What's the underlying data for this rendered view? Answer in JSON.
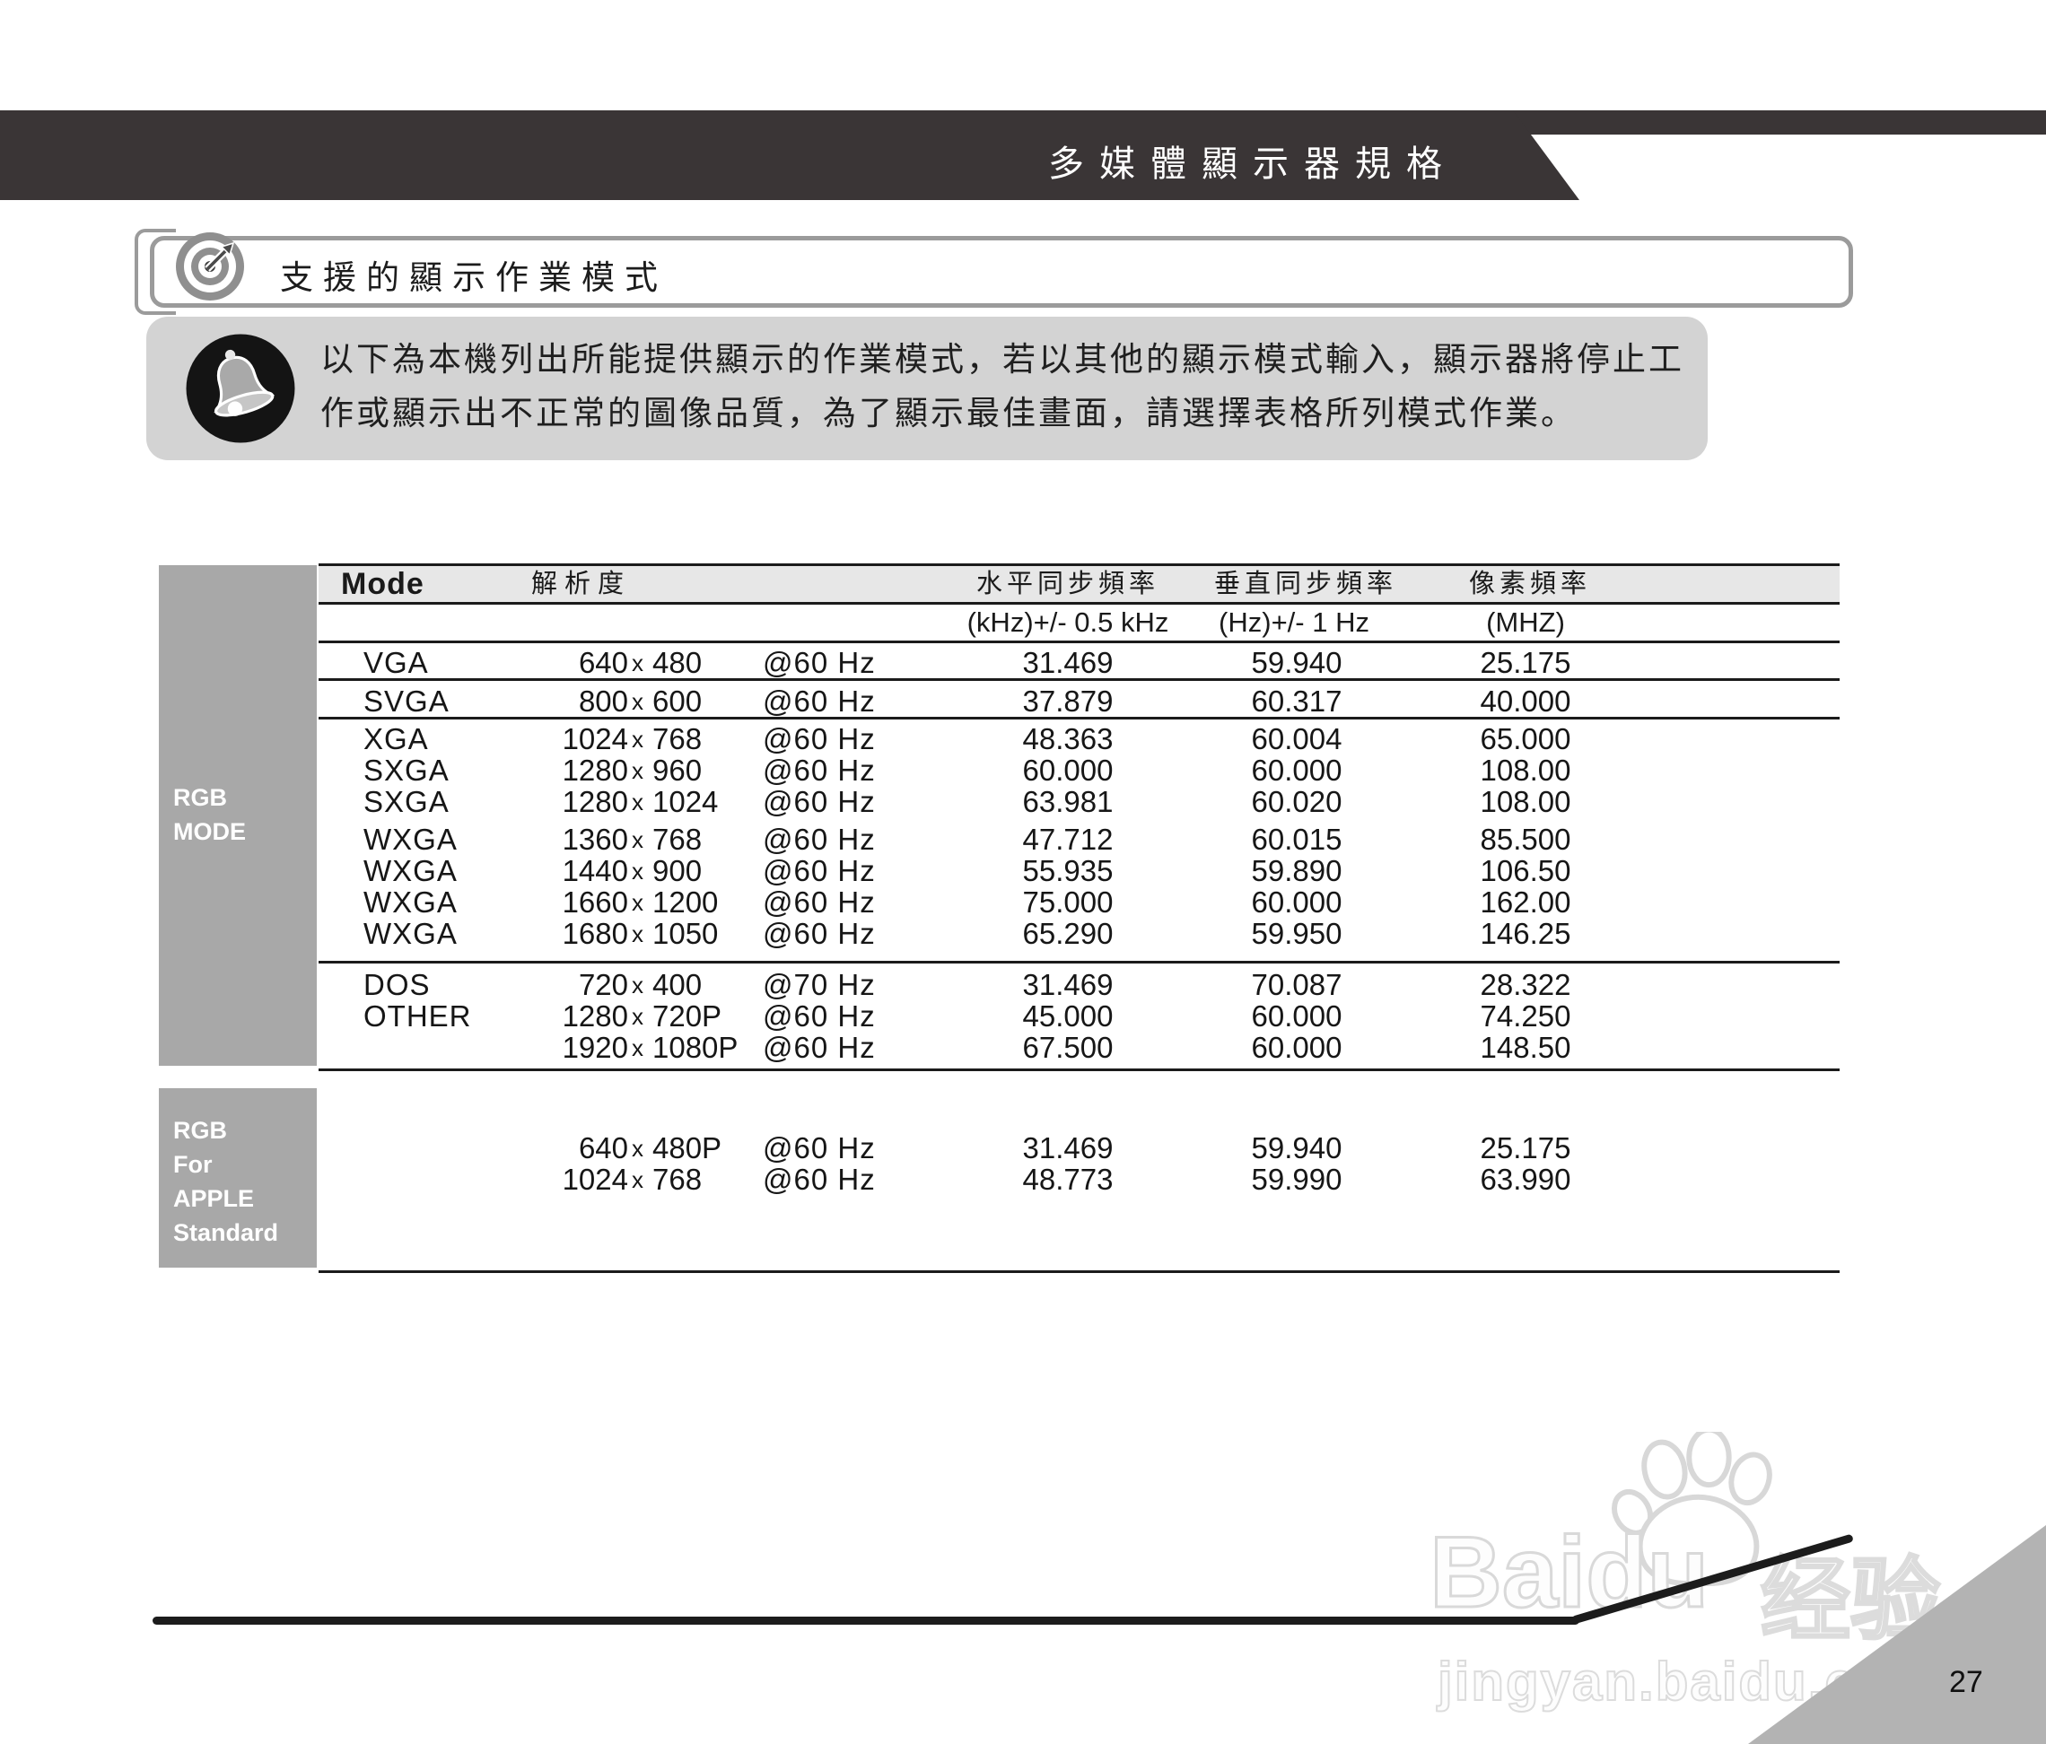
{
  "header": {
    "title": "多媒體顯示器規格"
  },
  "section": {
    "title": "支援的顯示作業模式"
  },
  "note": {
    "lines": [
      "以下為本機列出所能提供顯示的作業模式，若以其他的顯示模式輸入，顯示器將停止工",
      "作或顯示出不正常的圖像品質，為了顯示最佳畫面，請選擇表格所列模式作業。"
    ]
  },
  "table": {
    "col_headers": {
      "mode": "Mode",
      "resolution": "解析度",
      "h_sync": "水平同步頻率",
      "v_sync": "垂直同步頻率",
      "pixel": "像素頻率"
    },
    "unit_headers": {
      "h_sync": "(kHz)+/- 0.5 kHz",
      "v_sync": "(Hz)+/- 1 Hz",
      "pixel": "(MHZ)"
    },
    "res_sep": "x",
    "side_labels": {
      "rgb": "RGB\nMODE",
      "apple": "RGB\nFor\nAPPLE\nStandard"
    },
    "rows": [
      {
        "mode": "VGA",
        "res_w": "640",
        "res_h": "480",
        "rate": "@60 Hz",
        "h_sync": "31.469",
        "v_sync": "59.940",
        "pixel": "25.175"
      },
      {
        "mode": "SVGA",
        "res_w": "800",
        "res_h": "600",
        "rate": "@60 Hz",
        "h_sync": "37.879",
        "v_sync": "60.317",
        "pixel": "40.000"
      },
      {
        "mode": "XGA",
        "res_w": "1024",
        "res_h": "768",
        "rate": "@60 Hz",
        "h_sync": "48.363",
        "v_sync": "60.004",
        "pixel": "65.000"
      },
      {
        "mode": "SXGA",
        "res_w": "1280",
        "res_h": "960",
        "rate": "@60 Hz",
        "h_sync": "60.000",
        "v_sync": "60.000",
        "pixel": "108.00"
      },
      {
        "mode": "SXGA",
        "res_w": "1280",
        "res_h": "1024",
        "rate": "@60 Hz",
        "h_sync": "63.981",
        "v_sync": "60.020",
        "pixel": "108.00"
      },
      {
        "mode": "WXGA",
        "res_w": "1360",
        "res_h": "768",
        "rate": "@60 Hz",
        "h_sync": "47.712",
        "v_sync": "60.015",
        "pixel": "85.500"
      },
      {
        "mode": "WXGA",
        "res_w": "1440",
        "res_h": "900",
        "rate": "@60 Hz",
        "h_sync": "55.935",
        "v_sync": "59.890",
        "pixel": "106.50"
      },
      {
        "mode": "WXGA",
        "res_w": "1660",
        "res_h": "1200",
        "rate": "@60 Hz",
        "h_sync": "75.000",
        "v_sync": "60.000",
        "pixel": "162.00"
      },
      {
        "mode": "WXGA",
        "res_w": "1680",
        "res_h": "1050",
        "rate": "@60 Hz",
        "h_sync": "65.290",
        "v_sync": "59.950",
        "pixel": "146.25"
      },
      {
        "mode": "DOS",
        "res_w": "720",
        "res_h": "400",
        "rate": "@70 Hz",
        "h_sync": "31.469",
        "v_sync": "70.087",
        "pixel": "28.322"
      },
      {
        "mode": "OTHER",
        "res_w": "1280",
        "res_h": "720P",
        "rate": "@60 Hz",
        "h_sync": "45.000",
        "v_sync": "60.000",
        "pixel": "74.250"
      },
      {
        "mode": "",
        "res_w": "1920",
        "res_h": "1080P",
        "rate": "@60 Hz",
        "h_sync": "67.500",
        "v_sync": "60.000",
        "pixel": "148.50"
      },
      {
        "mode": "",
        "res_w": "640",
        "res_h": "480P",
        "rate": "@60 Hz",
        "h_sync": "31.469",
        "v_sync": "59.940",
        "pixel": "25.175"
      },
      {
        "mode": "",
        "res_w": "1024",
        "res_h": "768",
        "rate": "@60 Hz",
        "h_sync": "48.773",
        "v_sync": "59.990",
        "pixel": "63.990"
      }
    ]
  },
  "watermark": {
    "brand_latin": "Baidu",
    "brand_cn": "经验",
    "domain": "jingyan.baidu.com"
  },
  "footer": {
    "page_number": "27"
  }
}
